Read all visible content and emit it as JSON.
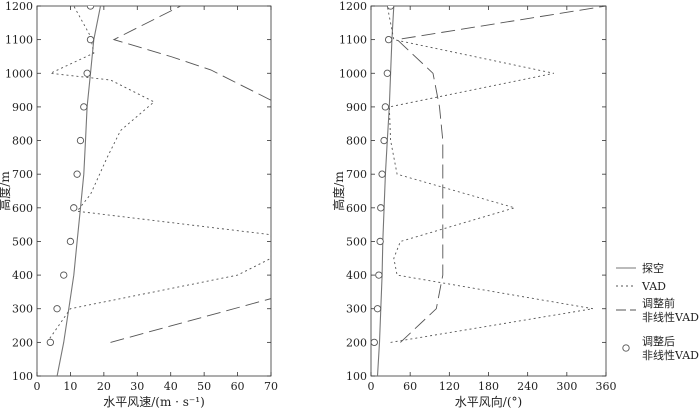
{
  "legend": [
    {
      "key": "sounding",
      "lines": [
        "探空"
      ],
      "style": "solid"
    },
    {
      "key": "vad",
      "lines": [
        "VAD"
      ],
      "style": "dotted"
    },
    {
      "key": "nonlinear_before",
      "lines": [
        "调整前",
        "非线性VAD"
      ],
      "style": "dashed"
    },
    {
      "key": "nonlinear_after",
      "lines": [
        "调整后",
        "非线性VAD"
      ],
      "style": "circle"
    }
  ],
  "chart_data": [
    {
      "type": "line",
      "xlabel": "水平风速/(m · s⁻¹)",
      "ylabel": "高度/m",
      "xlim": [
        0,
        70
      ],
      "ylim": [
        100,
        1200
      ],
      "xticks": [
        0,
        10,
        20,
        30,
        40,
        50,
        60,
        70
      ],
      "yticks": [
        100,
        200,
        300,
        400,
        500,
        600,
        700,
        800,
        900,
        1000,
        1100,
        1200
      ],
      "series": [
        {
          "key": "sounding",
          "style": "solid",
          "points": [
            [
              6,
              100
            ],
            [
              8,
              200
            ],
            [
              9.5,
              300
            ],
            [
              11,
              400
            ],
            [
              12,
              500
            ],
            [
              13,
              600
            ],
            [
              14,
              700
            ],
            [
              14.5,
              800
            ],
            [
              15,
              900
            ],
            [
              16,
              1000
            ],
            [
              17,
              1100
            ],
            [
              19,
              1200
            ]
          ]
        },
        {
          "key": "vad",
          "style": "dotted",
          "points": [
            [
              3,
              200
            ],
            [
              10,
              300
            ],
            [
              60,
              400
            ],
            [
              70,
              450
            ],
            [
              70,
              520
            ],
            [
              12,
              590
            ],
            [
              16,
              640
            ],
            [
              21,
              750
            ],
            [
              25,
              830
            ],
            [
              35,
              915
            ],
            [
              22,
              980
            ],
            [
              4,
              1000
            ],
            [
              17,
              1060
            ],
            [
              16,
              1110
            ],
            [
              11,
              1200
            ]
          ]
        },
        {
          "key": "nonlinear_before",
          "style": "dashed",
          "points": [
            [
              22,
              200
            ],
            [
              70,
              330
            ]
          ],
          "points_upper": [
            [
              70,
              920
            ],
            [
              52,
              1010
            ],
            [
              40,
              1050
            ],
            [
              23,
              1100
            ],
            [
              43,
              1200
            ]
          ]
        },
        {
          "key": "nonlinear_after",
          "style": "circle",
          "points": [
            [
              4,
              200
            ],
            [
              6,
              300
            ],
            [
              8,
              400
            ],
            [
              10,
              500
            ],
            [
              11,
              600
            ],
            [
              12,
              700
            ],
            [
              13,
              800
            ],
            [
              14,
              900
            ],
            [
              15,
              1000
            ],
            [
              16,
              1100
            ],
            [
              16,
              1200
            ]
          ]
        }
      ]
    },
    {
      "type": "line",
      "xlabel": "水平风向/(°)",
      "ylabel": "高度/m",
      "xlim": [
        0,
        360
      ],
      "ylim": [
        100,
        1200
      ],
      "xticks": [
        0,
        60,
        120,
        180,
        240,
        300,
        360
      ],
      "yticks": [
        100,
        200,
        300,
        400,
        500,
        600,
        700,
        800,
        900,
        1000,
        1100,
        1200
      ],
      "series": [
        {
          "key": "sounding",
          "style": "solid",
          "points": [
            [
              10,
              100
            ],
            [
              13,
              200
            ],
            [
              15,
              300
            ],
            [
              17,
              400
            ],
            [
              18,
              500
            ],
            [
              20,
              600
            ],
            [
              22,
              700
            ],
            [
              25,
              800
            ],
            [
              28,
              900
            ],
            [
              30,
              1000
            ],
            [
              32,
              1100
            ],
            [
              35,
              1200
            ]
          ]
        },
        {
          "key": "vad",
          "style": "dotted",
          "points": [
            [
              30,
              200
            ],
            [
              340,
              300
            ],
            [
              40,
              400
            ],
            [
              35,
              450
            ],
            [
              45,
              500
            ],
            [
              220,
              600
            ],
            [
              40,
              700
            ],
            [
              30,
              800
            ],
            [
              28,
              900
            ],
            [
              280,
              1000
            ],
            [
              35,
              1100
            ],
            [
              25,
              1200
            ]
          ]
        },
        {
          "key": "nonlinear_before",
          "style": "dashed",
          "points": [
            [
              45,
              200
            ],
            [
              100,
              300
            ],
            [
              110,
              400
            ],
            [
              110,
              500
            ],
            [
              110,
              600
            ],
            [
              110,
              700
            ],
            [
              110,
              800
            ],
            [
              105,
              900
            ],
            [
              95,
              1000
            ],
            [
              40,
              1100
            ],
            [
              360,
              1200
            ]
          ]
        },
        {
          "key": "nonlinear_after",
          "style": "circle",
          "points": [
            [
              5,
              200
            ],
            [
              10,
              300
            ],
            [
              12,
              400
            ],
            [
              14,
              500
            ],
            [
              15,
              600
            ],
            [
              17,
              700
            ],
            [
              20,
              800
            ],
            [
              22,
              900
            ],
            [
              25,
              1000
            ],
            [
              27,
              1100
            ],
            [
              30,
              1200
            ]
          ]
        }
      ]
    }
  ]
}
